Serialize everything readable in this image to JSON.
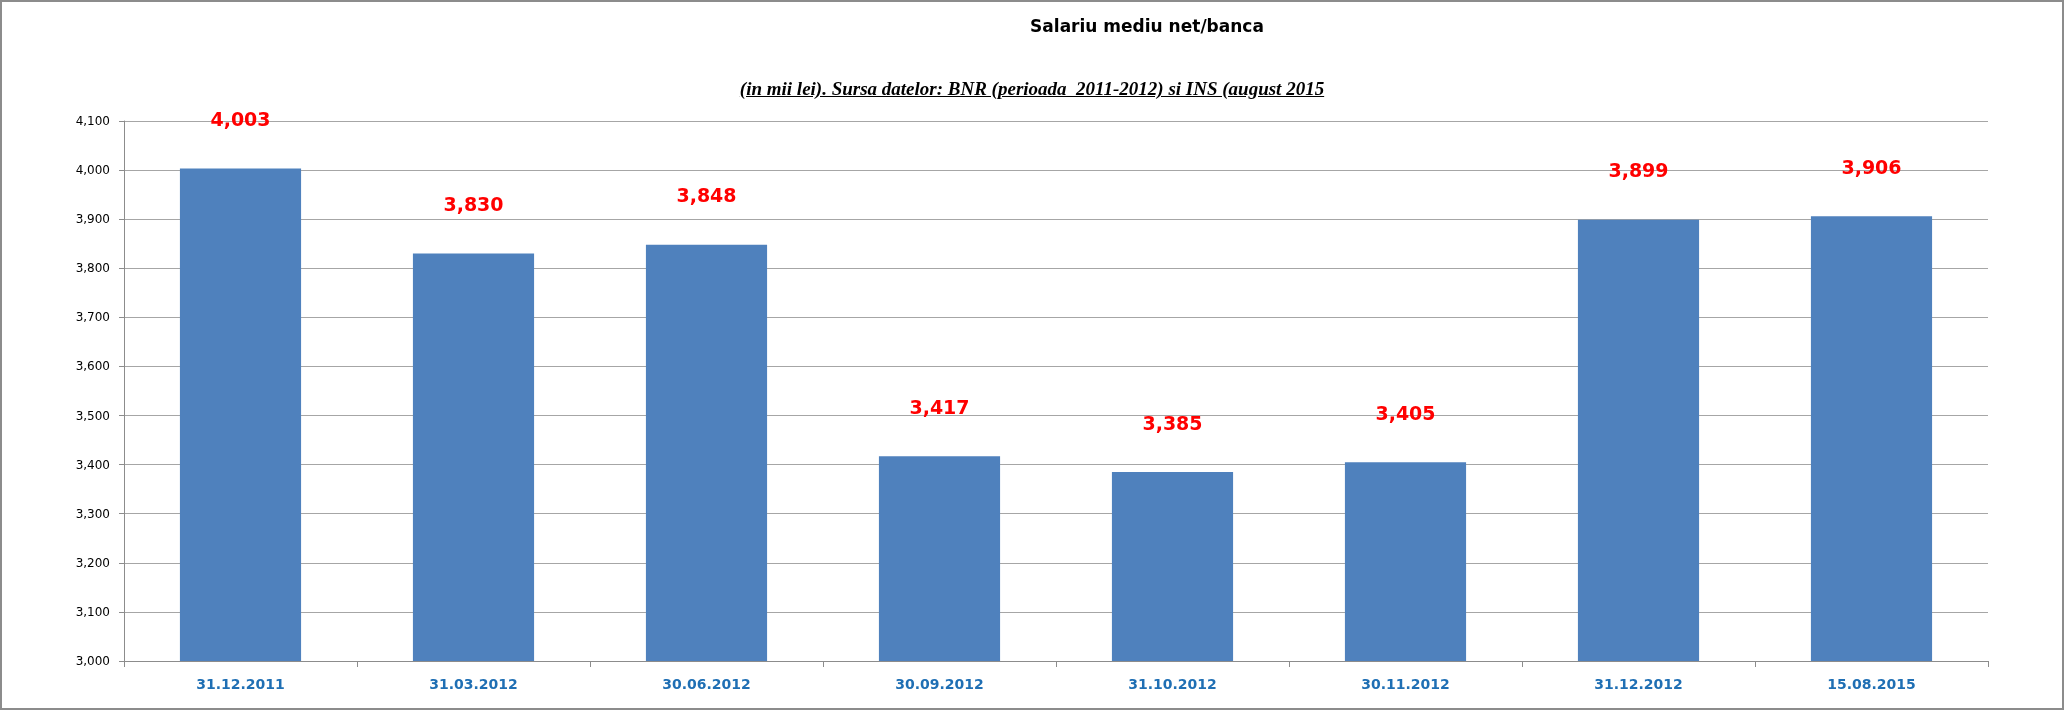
{
  "chart_data": {
    "type": "bar",
    "title": "Salariu mediu net/banca",
    "subtitle": "(in mii lei). Sursa datelor: BNR (perioada  2011-2012) si INS (august 2015",
    "categories": [
      "31.12.2011",
      "31.03.2012",
      "30.06.2012",
      "30.09.2012",
      "31.10.2012",
      "30.11.2012",
      "31.12.2012",
      "15.08.2015"
    ],
    "values": [
      4003,
      3830,
      3848,
      3417,
      3385,
      3405,
      3899,
      3906
    ],
    "value_labels": [
      "4,003",
      "3,830",
      "3,848",
      "3,417",
      "3,385",
      "3,405",
      "3,899",
      "3,906"
    ],
    "color": "#4f81bd",
    "ylim": [
      3000,
      4100
    ],
    "yticks": [
      {
        "value": 3000,
        "label": "3,000"
      },
      {
        "value": 3100,
        "label": "3,100"
      },
      {
        "value": 3200,
        "label": "3,200"
      },
      {
        "value": 3300,
        "label": "3,300"
      },
      {
        "value": 3400,
        "label": "3,400"
      },
      {
        "value": 3500,
        "label": "3,500"
      },
      {
        "value": 3600,
        "label": "3,600"
      },
      {
        "value": 3700,
        "label": "3,700"
      },
      {
        "value": 3800,
        "label": "3,800"
      },
      {
        "value": 3900,
        "label": "3,900"
      },
      {
        "value": 4000,
        "label": "4,000"
      },
      {
        "value": 4100,
        "label": "4,100"
      }
    ],
    "grid": "y"
  }
}
